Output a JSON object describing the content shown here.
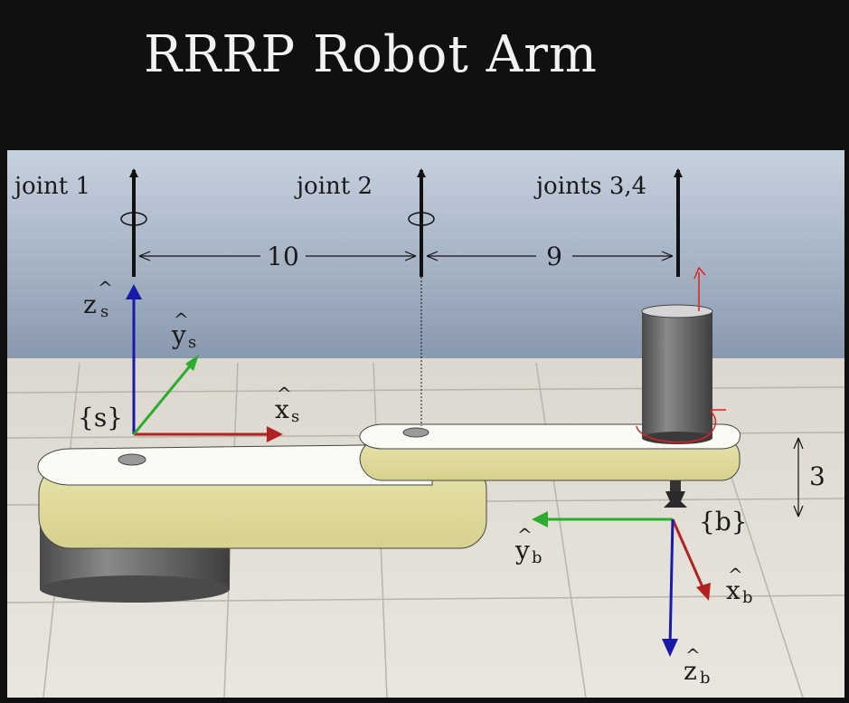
{
  "title": "RRRP Robot Arm",
  "joints": {
    "joint1": "joint 1",
    "joint2": "joint 2",
    "joints34": "joints 3,4"
  },
  "dimensions": {
    "link1": "10",
    "link2": "9",
    "height": "3"
  },
  "frames": {
    "space": "{s}",
    "body": "{b}"
  },
  "axes": {
    "zs": "z",
    "zs_sub": "s",
    "ys": "y",
    "ys_sub": "s",
    "xs": "x",
    "xs_sub": "s",
    "yb": "y",
    "yb_sub": "b",
    "xb": "x",
    "xb_sub": "b",
    "zb": "z",
    "zb_sub": "b"
  },
  "colors": {
    "x_axis": "#b22222",
    "y_axis": "#2eab2e",
    "z_axis": "#1a1aa8",
    "annotation": "#e02020",
    "link": "#eeeab8",
    "base": "#6a6a6a"
  }
}
